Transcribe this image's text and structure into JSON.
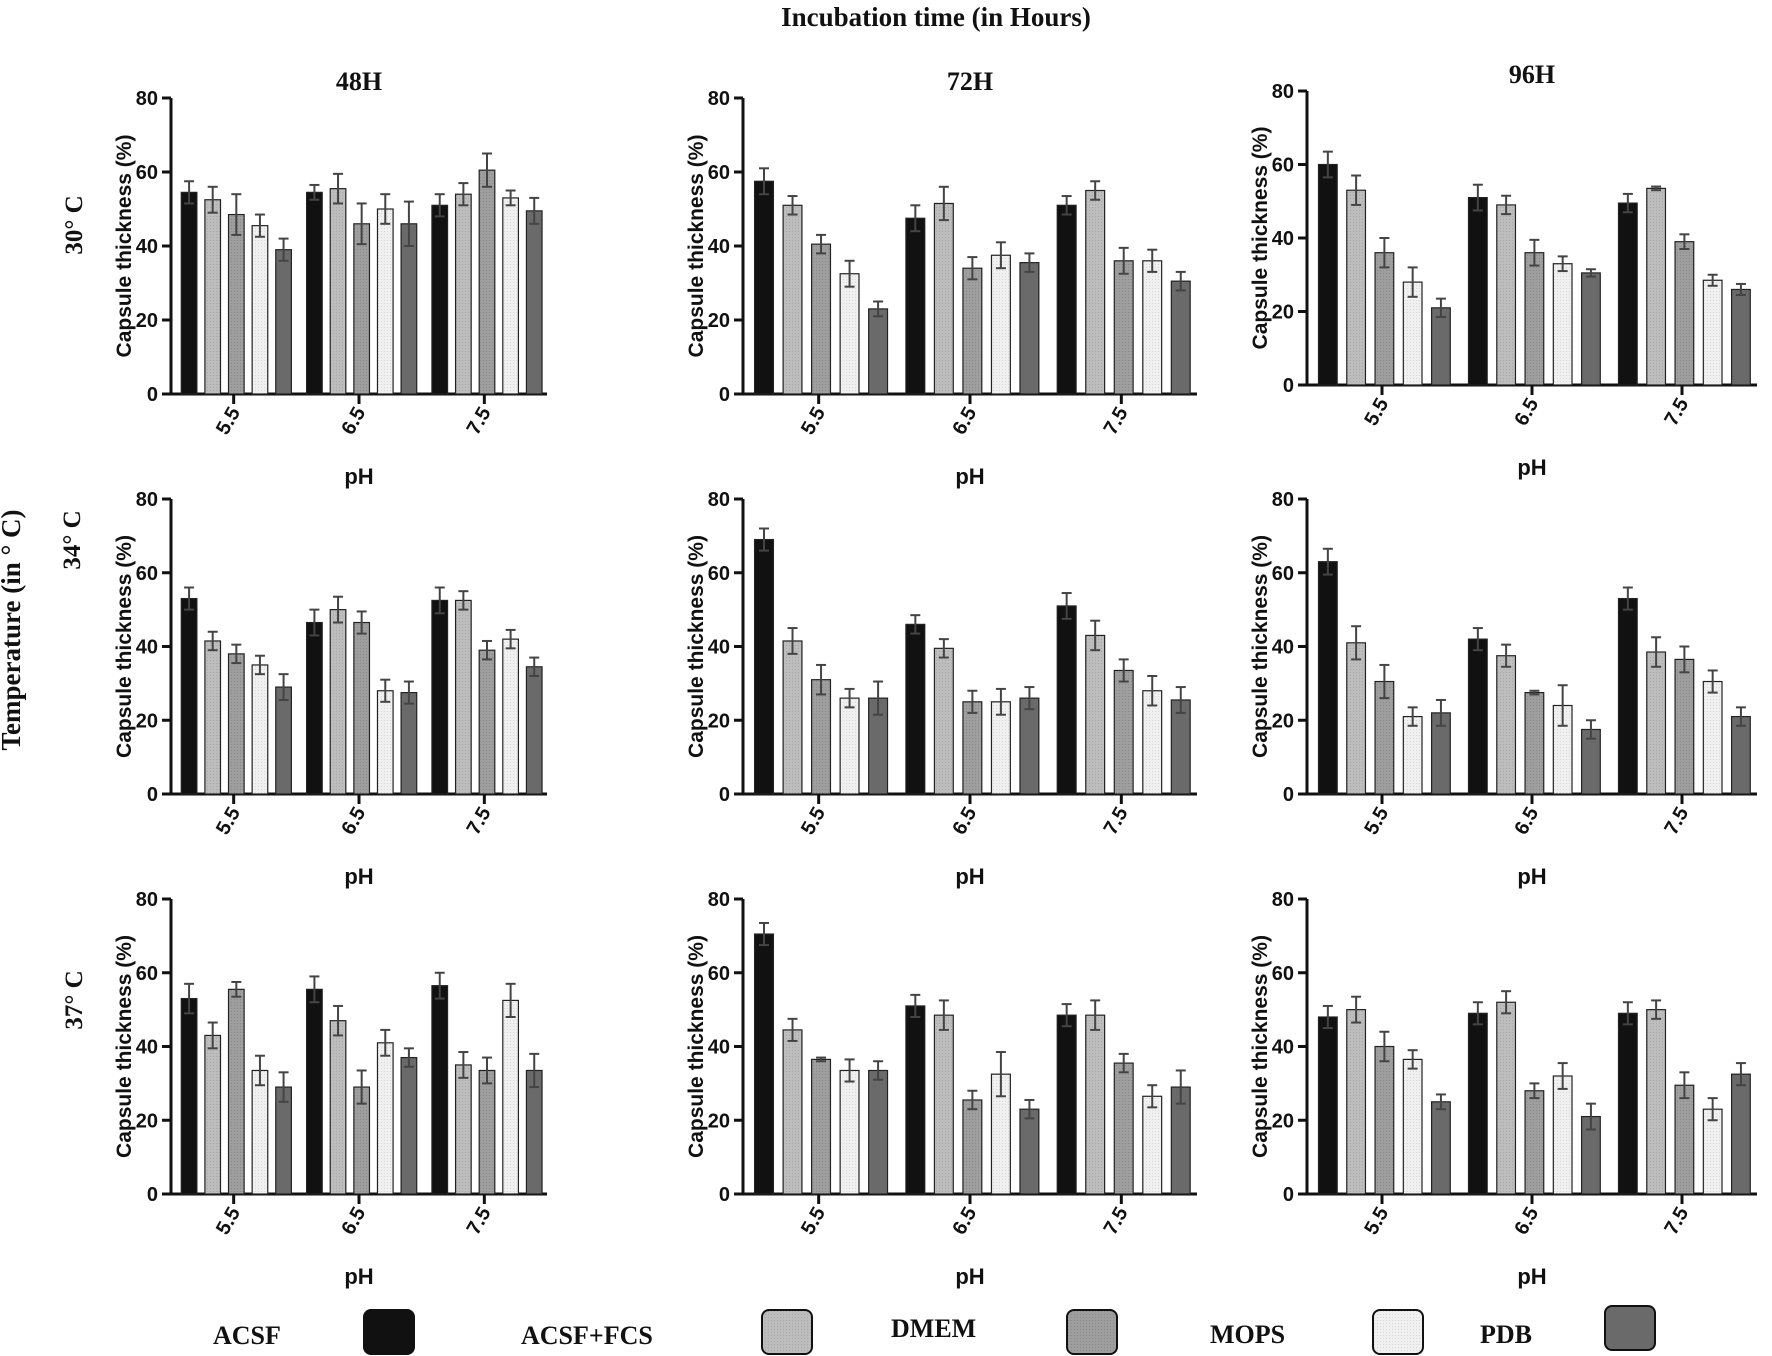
{
  "figure": {
    "main_title": "Incubation time (in Hours)",
    "row_axis_title": "Temperature (in ° C)",
    "row_labels": [
      "30° C",
      "34° C",
      "37° C"
    ],
    "column_titles": [
      "48H",
      "72H",
      "96H"
    ]
  },
  "legend": {
    "items": [
      {
        "label": "ACSF",
        "color": "#111111"
      },
      {
        "label": "ACSF+FCS",
        "color": "#bdbdbd"
      },
      {
        "label": "DMEM",
        "color": "#9e9e9e"
      },
      {
        "label": "MOPS",
        "color": "#f0f0f0"
      },
      {
        "label": "PDB",
        "color": "#6a6a6a"
      }
    ]
  },
  "chart_data": [
    {
      "type": "bar",
      "row": "30° C",
      "title": "48H",
      "xlabel": "pH",
      "ylabel": "Capsule thickness (%)",
      "ylim": [
        0,
        80
      ],
      "yticks": [
        0,
        20,
        40,
        60,
        80
      ],
      "categories": [
        "5.5",
        "6.5",
        "7.5"
      ],
      "series": [
        {
          "name": "ACSF",
          "values": [
            54.5,
            54.5,
            51
          ],
          "errors": [
            3,
            2,
            3
          ]
        },
        {
          "name": "ACSF+FCS",
          "values": [
            52.5,
            55.5,
            54
          ],
          "errors": [
            3.5,
            4,
            3
          ]
        },
        {
          "name": "DMEM",
          "values": [
            48.5,
            46,
            60.5
          ],
          "errors": [
            5.5,
            5.5,
            4.5
          ]
        },
        {
          "name": "MOPS",
          "values": [
            45.5,
            50,
            53
          ],
          "errors": [
            3,
            4,
            2
          ]
        },
        {
          "name": "PDB",
          "values": [
            39,
            46,
            49.5
          ],
          "errors": [
            3,
            6,
            3.5
          ]
        }
      ]
    },
    {
      "type": "bar",
      "row": "30° C",
      "title": "72H",
      "xlabel": "pH",
      "ylabel": "Capsule thickness (%)",
      "ylim": [
        0,
        80
      ],
      "yticks": [
        0,
        20,
        40,
        60,
        80
      ],
      "categories": [
        "5.5",
        "6.5",
        "7.5"
      ],
      "series": [
        {
          "name": "ACSF",
          "values": [
            57.5,
            47.5,
            51
          ],
          "errors": [
            3.5,
            3.5,
            2.5
          ]
        },
        {
          "name": "ACSF+FCS",
          "values": [
            51,
            51.5,
            55
          ],
          "errors": [
            2.5,
            4.5,
            2.5
          ]
        },
        {
          "name": "DMEM",
          "values": [
            40.5,
            34,
            36
          ],
          "errors": [
            2.5,
            3,
            3.5
          ]
        },
        {
          "name": "MOPS",
          "values": [
            32.5,
            37.5,
            36
          ],
          "errors": [
            3.5,
            3.5,
            3
          ]
        },
        {
          "name": "PDB",
          "values": [
            23,
            35.5,
            30.5
          ],
          "errors": [
            2,
            2.5,
            2.5
          ]
        }
      ]
    },
    {
      "type": "bar",
      "row": "30° C",
      "title": "96H",
      "xlabel": "pH",
      "ylabel": "Capsule thickness (%)",
      "ylim": [
        0,
        80
      ],
      "yticks": [
        0,
        20,
        40,
        60,
        80
      ],
      "categories": [
        "5.5",
        "6.5",
        "7.5"
      ],
      "series": [
        {
          "name": "ACSF",
          "values": [
            60,
            51,
            49.5
          ],
          "errors": [
            3.5,
            3.5,
            2.5
          ]
        },
        {
          "name": "ACSF+FCS",
          "values": [
            53,
            49,
            53.5
          ],
          "errors": [
            4,
            2.5,
            0.5
          ]
        },
        {
          "name": "DMEM",
          "values": [
            36,
            36,
            39
          ],
          "errors": [
            4,
            3.5,
            2
          ]
        },
        {
          "name": "MOPS",
          "values": [
            28,
            33,
            28.5
          ],
          "errors": [
            4,
            2,
            1.5
          ]
        },
        {
          "name": "PDB",
          "values": [
            21,
            30.5,
            26
          ],
          "errors": [
            2.5,
            1,
            1.5
          ]
        }
      ]
    },
    {
      "type": "bar",
      "row": "34° C",
      "title": "",
      "xlabel": "pH",
      "ylabel": "Capsule thickness (%)",
      "ylim": [
        0,
        80
      ],
      "yticks": [
        0,
        20,
        40,
        60,
        80
      ],
      "categories": [
        "5.5",
        "6.5",
        "7.5"
      ],
      "series": [
        {
          "name": "ACSF",
          "values": [
            53,
            46.5,
            52.5
          ],
          "errors": [
            3,
            3.5,
            3.5
          ]
        },
        {
          "name": "ACSF+FCS",
          "values": [
            41.5,
            50,
            52.5
          ],
          "errors": [
            2.5,
            3.5,
            2.5
          ]
        },
        {
          "name": "DMEM",
          "values": [
            38,
            46.5,
            39
          ],
          "errors": [
            2.5,
            3,
            2.5
          ]
        },
        {
          "name": "MOPS",
          "values": [
            35,
            28,
            42
          ],
          "errors": [
            2.5,
            3,
            2.5
          ]
        },
        {
          "name": "PDB",
          "values": [
            29,
            27.5,
            34.5
          ],
          "errors": [
            3.5,
            3,
            2.5
          ]
        }
      ]
    },
    {
      "type": "bar",
      "row": "34° C",
      "title": "",
      "xlabel": "pH",
      "ylabel": "Capsule thickness (%)",
      "ylim": [
        0,
        80
      ],
      "yticks": [
        0,
        20,
        40,
        60,
        80
      ],
      "categories": [
        "5.5",
        "6.5",
        "7.5"
      ],
      "series": [
        {
          "name": "ACSF",
          "values": [
            69,
            46,
            51
          ],
          "errors": [
            3,
            2.5,
            3.5
          ]
        },
        {
          "name": "ACSF+FCS",
          "values": [
            41.5,
            39.5,
            43
          ],
          "errors": [
            3.5,
            2.5,
            4
          ]
        },
        {
          "name": "DMEM",
          "values": [
            31,
            25,
            33.5
          ],
          "errors": [
            4,
            3,
            3
          ]
        },
        {
          "name": "MOPS",
          "values": [
            26,
            25,
            28
          ],
          "errors": [
            2.5,
            3.5,
            4
          ]
        },
        {
          "name": "PDB",
          "values": [
            26,
            26,
            25.5
          ],
          "errors": [
            4.5,
            3,
            3.5
          ]
        }
      ]
    },
    {
      "type": "bar",
      "row": "34° C",
      "title": "",
      "xlabel": "pH",
      "ylabel": "Capsule thickness (%)",
      "ylim": [
        0,
        80
      ],
      "yticks": [
        0,
        20,
        40,
        60,
        80
      ],
      "categories": [
        "5.5",
        "6.5",
        "7.5"
      ],
      "series": [
        {
          "name": "ACSF",
          "values": [
            63,
            42,
            53
          ],
          "errors": [
            3.5,
            3,
            3
          ]
        },
        {
          "name": "ACSF+FCS",
          "values": [
            41,
            37.5,
            38.5
          ],
          "errors": [
            4.5,
            3,
            4
          ]
        },
        {
          "name": "DMEM",
          "values": [
            30.5,
            27.5,
            36.5
          ],
          "errors": [
            4.5,
            0.5,
            3.5
          ]
        },
        {
          "name": "MOPS",
          "values": [
            21,
            24,
            30.5
          ],
          "errors": [
            2.5,
            5.5,
            3
          ]
        },
        {
          "name": "PDB",
          "values": [
            22,
            17.5,
            21
          ],
          "errors": [
            3.5,
            2.5,
            2.5
          ]
        }
      ]
    },
    {
      "type": "bar",
      "row": "37° C",
      "title": "",
      "xlabel": "pH",
      "ylabel": "Capsule thickness (%)",
      "ylim": [
        0,
        80
      ],
      "yticks": [
        0,
        20,
        40,
        60,
        80
      ],
      "categories": [
        "5.5",
        "6.5",
        "7.5"
      ],
      "series": [
        {
          "name": "ACSF",
          "values": [
            53,
            55.5,
            56.5
          ],
          "errors": [
            4,
            3.5,
            3.5
          ]
        },
        {
          "name": "ACSF+FCS",
          "values": [
            43,
            47,
            35
          ],
          "errors": [
            3.5,
            4,
            3.5
          ]
        },
        {
          "name": "DMEM",
          "values": [
            55.5,
            29,
            33.5
          ],
          "errors": [
            2,
            4.5,
            3.5
          ]
        },
        {
          "name": "MOPS",
          "values": [
            33.5,
            41,
            52.5
          ],
          "errors": [
            4,
            3.5,
            4.5
          ]
        },
        {
          "name": "PDB",
          "values": [
            29,
            37,
            33.5
          ],
          "errors": [
            4,
            2.5,
            4.5
          ]
        }
      ]
    },
    {
      "type": "bar",
      "row": "37° C",
      "title": "",
      "xlabel": "pH",
      "ylabel": "Capsule thickness (%)",
      "ylim": [
        0,
        80
      ],
      "yticks": [
        0,
        20,
        40,
        60,
        80
      ],
      "categories": [
        "5.5",
        "6.5",
        "7.5"
      ],
      "series": [
        {
          "name": "ACSF",
          "values": [
            70.5,
            51,
            48.5
          ],
          "errors": [
            3,
            3,
            3
          ]
        },
        {
          "name": "ACSF+FCS",
          "values": [
            44.5,
            48.5,
            48.5
          ],
          "errors": [
            3,
            4,
            4
          ]
        },
        {
          "name": "DMEM",
          "values": [
            36.5,
            25.5,
            35.5
          ],
          "errors": [
            0.5,
            2.5,
            2.5
          ]
        },
        {
          "name": "MOPS",
          "values": [
            33.5,
            32.5,
            26.5
          ],
          "errors": [
            3,
            6,
            3
          ]
        },
        {
          "name": "PDB",
          "values": [
            33.5,
            23,
            29
          ],
          "errors": [
            2.5,
            2.5,
            4.5
          ]
        }
      ]
    },
    {
      "type": "bar",
      "row": "37° C",
      "title": "",
      "xlabel": "pH",
      "ylabel": "Capsule thickness (%)",
      "ylim": [
        0,
        80
      ],
      "yticks": [
        0,
        20,
        40,
        60,
        80
      ],
      "categories": [
        "5.5",
        "6.5",
        "7.5"
      ],
      "series": [
        {
          "name": "ACSF",
          "values": [
            48,
            49,
            49
          ],
          "errors": [
            3,
            3,
            3
          ]
        },
        {
          "name": "ACSF+FCS",
          "values": [
            50,
            52,
            50
          ],
          "errors": [
            3.5,
            3,
            2.5
          ]
        },
        {
          "name": "DMEM",
          "values": [
            40,
            28,
            29.5
          ],
          "errors": [
            4,
            2,
            3.5
          ]
        },
        {
          "name": "MOPS",
          "values": [
            36.5,
            32,
            23
          ],
          "errors": [
            2.5,
            3.5,
            3
          ]
        },
        {
          "name": "PDB",
          "values": [
            25,
            21,
            32.5
          ],
          "errors": [
            2,
            3.5,
            3
          ]
        }
      ]
    }
  ]
}
